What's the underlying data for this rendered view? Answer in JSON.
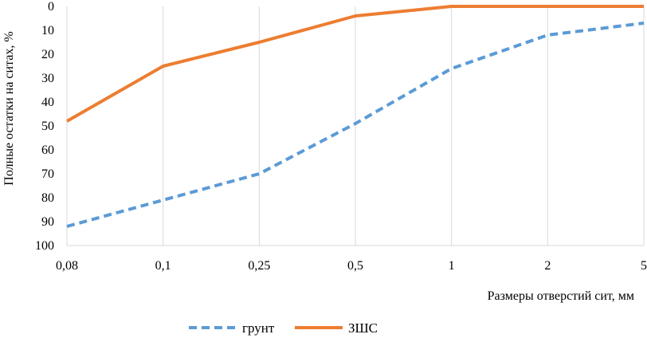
{
  "chart_data": {
    "type": "line",
    "title": "",
    "categories": [
      "0,08",
      "0,1",
      "0,25",
      "0,5",
      "1",
      "2",
      "5"
    ],
    "xlabel": "Размеры отверстий сит, мм",
    "ylabel": "Полные остатки на ситах, %",
    "ylim": [
      0,
      100
    ],
    "y_inverted": true,
    "y_ticks": [
      "0",
      "10",
      "20",
      "30",
      "40",
      "50",
      "60",
      "70",
      "80",
      "90",
      "100"
    ],
    "grid": "vertical",
    "legend_position": "bottom",
    "series": [
      {
        "name": "грунт",
        "values": [
          92,
          81,
          70,
          49,
          26,
          12,
          7
        ],
        "color": "#5B9BD5",
        "style": "dashed"
      },
      {
        "name": "ЗШС",
        "values": [
          48,
          25,
          15,
          4,
          0,
          0,
          0
        ],
        "color": "#ED7D31",
        "style": "solid"
      }
    ]
  }
}
